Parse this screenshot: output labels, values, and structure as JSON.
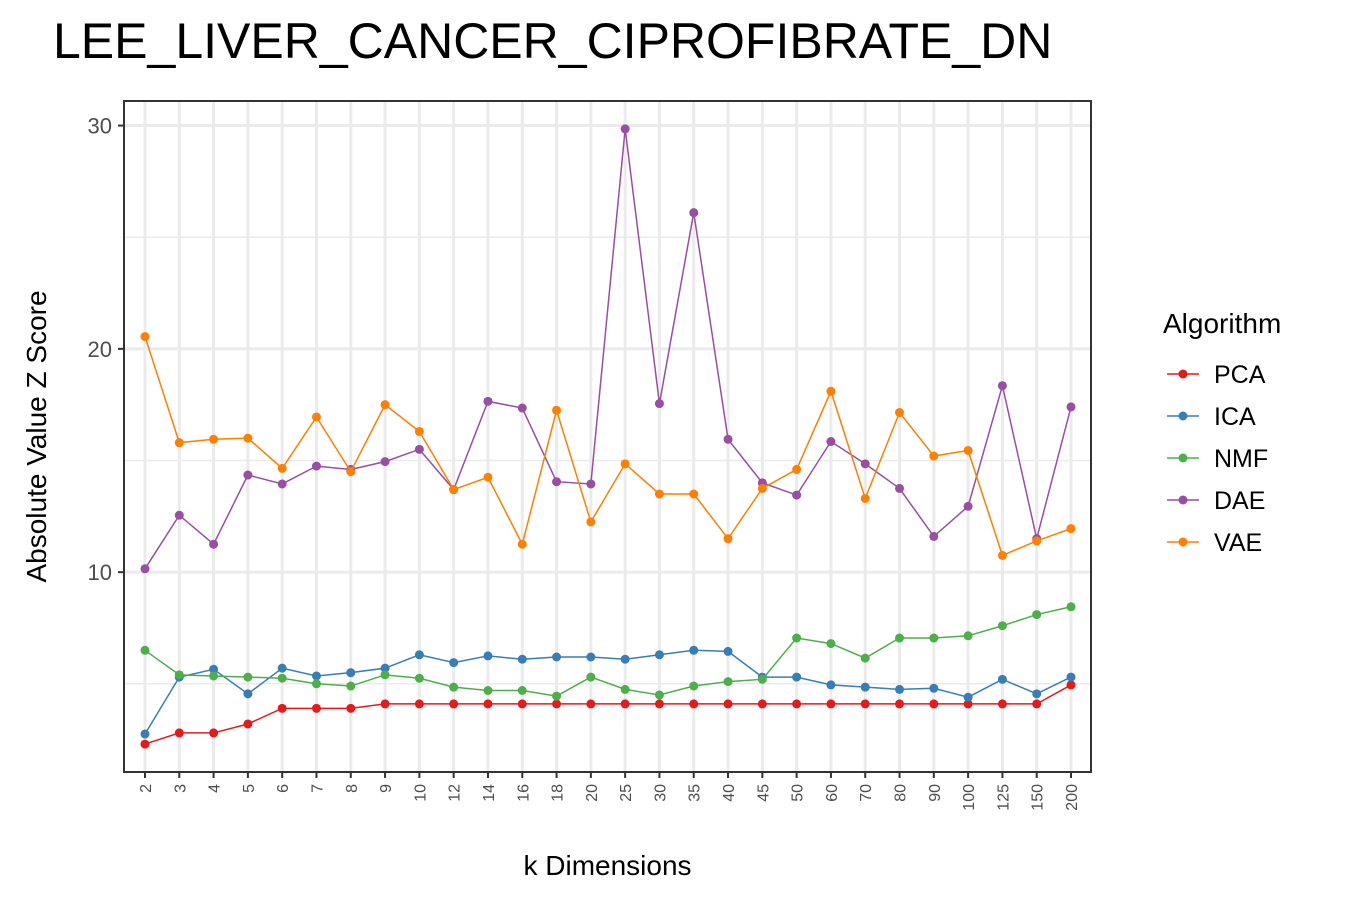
{
  "chart_data": {
    "type": "line",
    "title": "LEE_LIVER_CANCER_CIPROFIBRATE_DN",
    "xlabel": "k Dimensions",
    "ylabel": "Absolute Value Z Score",
    "legend_title": "Algorithm",
    "legend_position": "right",
    "grid": true,
    "ylim": [
      1.05,
      31.1
    ],
    "yticks": [
      10,
      20,
      30
    ],
    "categories": [
      "2",
      "3",
      "4",
      "5",
      "6",
      "7",
      "8",
      "9",
      "10",
      "12",
      "14",
      "16",
      "18",
      "20",
      "25",
      "30",
      "35",
      "40",
      "45",
      "50",
      "60",
      "70",
      "80",
      "90",
      "100",
      "125",
      "150",
      "200"
    ],
    "series": [
      {
        "name": "PCA",
        "color": "#e41a1c",
        "values": [
          2.3,
          2.8,
          2.8,
          3.2,
          3.9,
          3.9,
          3.9,
          4.1,
          4.1,
          4.1,
          4.1,
          4.1,
          4.1,
          4.1,
          4.1,
          4.1,
          4.1,
          4.1,
          4.1,
          4.1,
          4.1,
          4.1,
          4.1,
          4.1,
          4.1,
          4.1,
          4.1,
          4.95
        ]
      },
      {
        "name": "ICA",
        "color": "#377eb8",
        "values": [
          2.75,
          5.3,
          5.65,
          4.55,
          5.7,
          5.35,
          5.5,
          5.7,
          6.3,
          5.95,
          6.25,
          6.1,
          6.2,
          6.2,
          6.1,
          6.3,
          6.5,
          6.45,
          5.3,
          5.3,
          4.95,
          4.85,
          4.75,
          4.8,
          4.4,
          5.2,
          4.55,
          5.3
        ]
      },
      {
        "name": "NMF",
        "color": "#4daf4a",
        "values": [
          6.5,
          5.4,
          5.35,
          5.3,
          5.25,
          5.0,
          4.9,
          5.4,
          5.25,
          4.85,
          4.7,
          4.7,
          4.45,
          5.3,
          4.75,
          4.5,
          4.9,
          5.1,
          5.2,
          7.05,
          6.8,
          6.15,
          7.05,
          7.05,
          7.15,
          7.6,
          8.1,
          8.45
        ]
      },
      {
        "name": "DAE",
        "color": "#984ea3",
        "values": [
          10.15,
          12.55,
          11.25,
          14.35,
          13.95,
          14.75,
          14.6,
          14.95,
          15.5,
          13.7,
          17.65,
          17.35,
          14.05,
          13.95,
          29.85,
          17.55,
          26.1,
          15.95,
          14.0,
          13.45,
          15.85,
          14.85,
          13.75,
          11.6,
          12.95,
          18.35,
          11.5,
          17.4
        ]
      },
      {
        "name": "VAE",
        "color": "#ff7f00",
        "values": [
          20.55,
          15.8,
          15.95,
          16.0,
          14.65,
          16.95,
          14.5,
          17.5,
          16.3,
          13.7,
          14.25,
          11.25,
          17.25,
          12.25,
          14.85,
          13.5,
          13.5,
          11.5,
          13.75,
          14.6,
          18.1,
          13.3,
          17.15,
          15.2,
          15.45,
          10.75,
          11.4,
          11.95
        ]
      }
    ]
  }
}
